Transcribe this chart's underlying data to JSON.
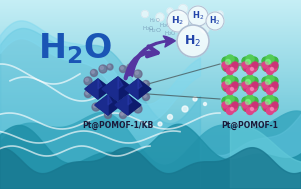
{
  "bg_top": "#c5eef5",
  "bg_bottom": "#45b5cc",
  "wave1_color": "#5abfd8",
  "wave2_color": "#3aa8c0",
  "wave3_color": "#2090a8",
  "wave_left_color": "#6dcfe0",
  "label1": "Pt@POMOF-1/KB",
  "label2": "Pt@POMOF-1",
  "label_color": "#1a1a3a",
  "title_color": "#1a55b5",
  "arrow_color": "#5535a0",
  "pom_dark": "#0d1b6e",
  "pom_mid": "#1a2b8e",
  "pom_shine": "#2a3bae",
  "mof_green": "#3db845",
  "mof_pink": "#dd4488",
  "mof_gray": "#9aaaaa",
  "mof_rod": "#888888",
  "kb_gray": "#666688",
  "bubble_white": "#ffffff",
  "h2_text_color": "#2244aa",
  "h2o_color": "#1a55b5",
  "foam_color": "#ffffff"
}
